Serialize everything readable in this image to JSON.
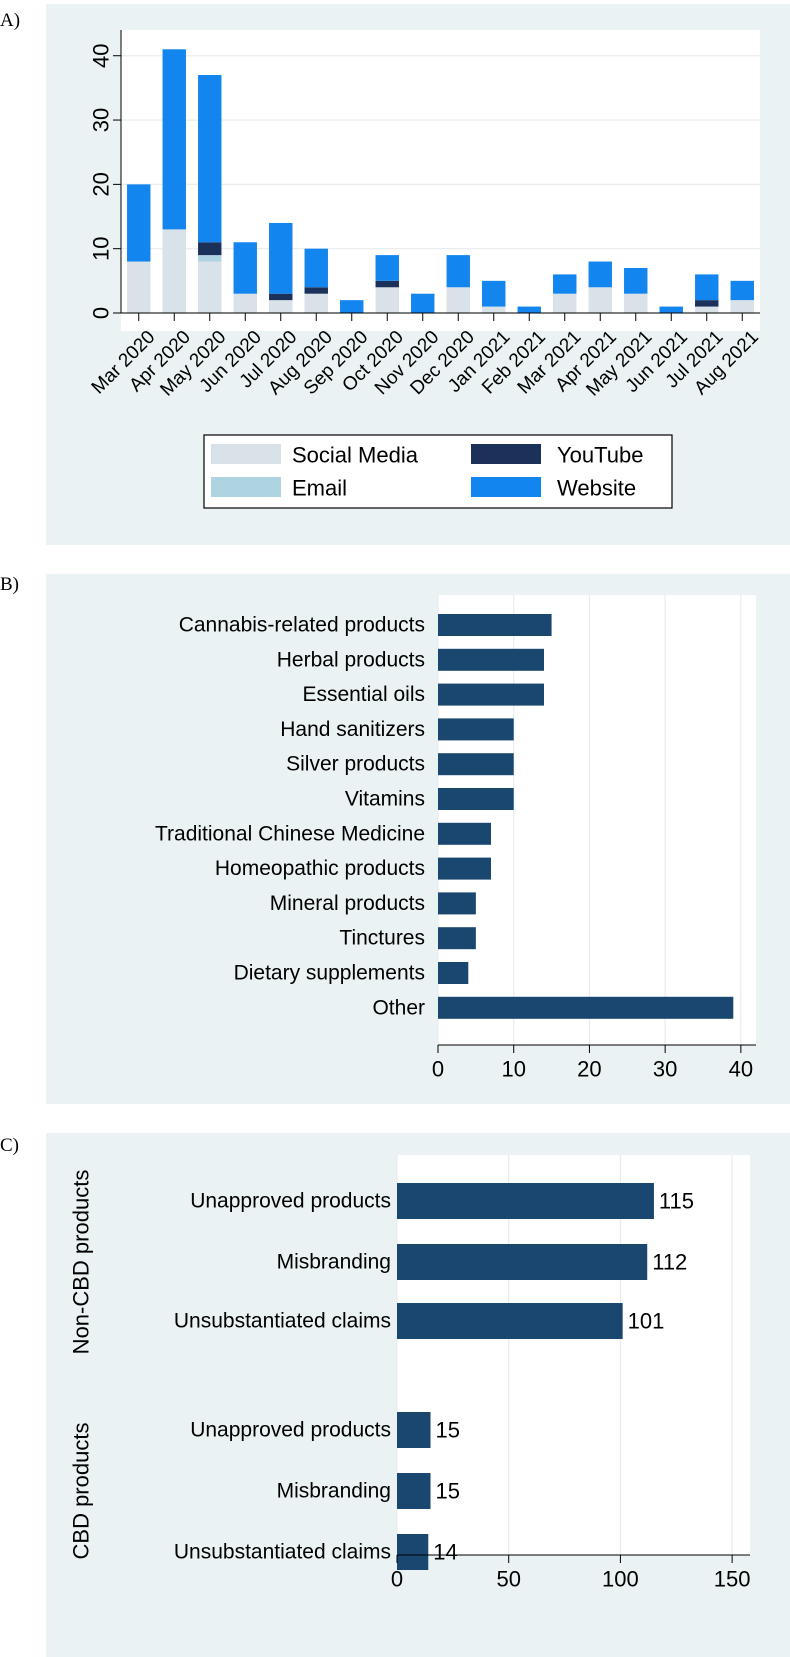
{
  "chart_data": [
    {
      "panel": "A)",
      "type": "bar",
      "orientation": "vertical",
      "stacked": true,
      "categories": [
        "Mar 2020",
        "Apr 2020",
        "May 2020",
        "Jun 2020",
        "Jul 2020",
        "Aug 2020",
        "Sep 2020",
        "Oct 2020",
        "Nov 2020",
        "Dec 2020",
        "Jan 2021",
        "Feb 2021",
        "Mar 2021",
        "Apr 2021",
        "May 2021",
        "Jun 2021",
        "Jul 2021",
        "Aug 2021"
      ],
      "series": [
        {
          "name": "Social Media",
          "color": "#d9e2e8",
          "values": [
            8,
            13,
            8,
            3,
            2,
            3,
            0,
            4,
            0,
            4,
            1,
            0,
            3,
            4,
            3,
            0,
            1,
            2
          ]
        },
        {
          "name": "Email",
          "color": "#aed3e1",
          "values": [
            0,
            0,
            1,
            0,
            0,
            0,
            0,
            0,
            0,
            0,
            0,
            0,
            0,
            0,
            0,
            0,
            0,
            0
          ]
        },
        {
          "name": "YouTube",
          "color": "#1c3159",
          "values": [
            0,
            0,
            2,
            0,
            1,
            1,
            0,
            1,
            0,
            0,
            0,
            0,
            0,
            0,
            0,
            0,
            1,
            0
          ]
        },
        {
          "name": "Website",
          "color": "#1385ef",
          "values": [
            12,
            28,
            26,
            8,
            11,
            6,
            2,
            4,
            3,
            5,
            4,
            1,
            3,
            4,
            4,
            1,
            4,
            3
          ]
        }
      ],
      "yticks": [
        0,
        10,
        20,
        30,
        40
      ],
      "ylim": [
        0,
        44
      ],
      "title": "",
      "xlabel": "",
      "ylabel": "",
      "legend_position": "bottom"
    },
    {
      "panel": "B)",
      "type": "bar",
      "orientation": "horizontal",
      "categories": [
        "Cannabis-related products",
        "Herbal products",
        "Essential oils",
        "Hand sanitizers",
        "Silver products",
        "Vitamins",
        "Traditional Chinese Medicine",
        "Homeopathic products",
        "Mineral products",
        "Tinctures",
        "Dietary supplements",
        "Other"
      ],
      "values": [
        15,
        14,
        14,
        10,
        10,
        10,
        7,
        7,
        5,
        5,
        4,
        39
      ],
      "bar_color": "#1a476f",
      "xticks": [
        0,
        10,
        20,
        30,
        40
      ],
      "xlim": [
        0,
        42
      ],
      "title": "",
      "xlabel": "",
      "ylabel": ""
    },
    {
      "panel": "C)",
      "type": "bar",
      "orientation": "horizontal",
      "groups": [
        {
          "name": "Non-CBD products",
          "categories": [
            "Unapproved products",
            "Misbranding",
            "Unsubstantiated claims"
          ],
          "values": [
            115,
            112,
            101
          ]
        },
        {
          "name": "CBD products",
          "categories": [
            "Unapproved products",
            "Misbranding",
            "Unsubstantiated claims"
          ],
          "values": [
            15,
            15,
            14
          ]
        }
      ],
      "bar_color": "#1a476f",
      "xticks": [
        0,
        50,
        100,
        150
      ],
      "xlim": [
        0,
        158
      ],
      "data_labels": true,
      "title": "",
      "xlabel": "",
      "ylabel": ""
    }
  ]
}
